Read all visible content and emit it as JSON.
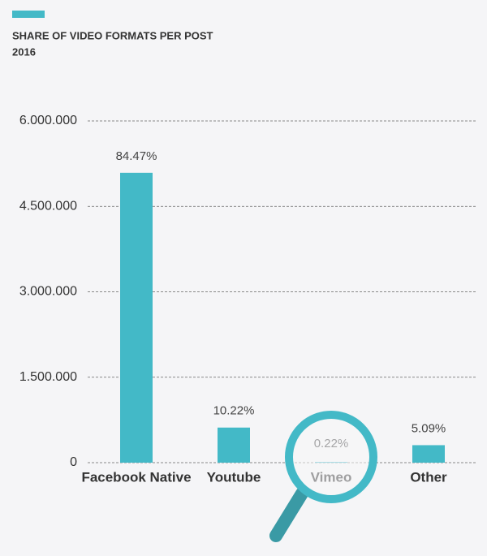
{
  "chart_data": {
    "type": "bar",
    "title": "SHARE OF VIDEO FORMATS PER POST",
    "subtitle": "2016",
    "categories": [
      "Facebook Native",
      "Youtube",
      "Vimeo",
      "Other"
    ],
    "values": [
      5090000,
      616000,
      13000,
      307000
    ],
    "annotations": [
      "84.47%",
      "10.22%",
      "0.22%",
      "5.09%"
    ],
    "color": "#43b9c7",
    "ylim": [
      0,
      6000000
    ],
    "yticks": [
      0,
      {
        "value": 1500000,
        "label": "1.500.000"
      },
      {
        "value": 3000000,
        "label": "3.000.000"
      },
      {
        "value": 4500000,
        "label": "4.500.000"
      },
      {
        "value": 6000000,
        "label": "6.000.000"
      }
    ],
    "grid": true
  }
}
